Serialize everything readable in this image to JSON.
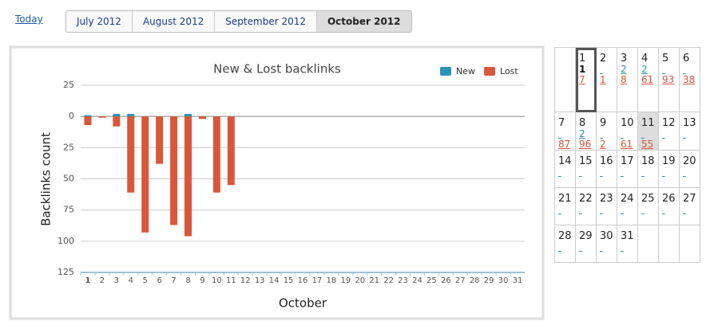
{
  "nav": {
    "today": "Today",
    "tabs": [
      "July 2012",
      "August 2012",
      "September 2012",
      "October 2012"
    ],
    "active_tab": 3
  },
  "chart_data": {
    "type": "bar",
    "title": "New & Lost backlinks",
    "x_label": "October",
    "y_label": "Backlinks count",
    "categories": [
      "1",
      "2",
      "3",
      "4",
      "5",
      "6",
      "7",
      "8",
      "9",
      "10",
      "11",
      "12",
      "13",
      "14",
      "15",
      "16",
      "17",
      "18",
      "19",
      "20",
      "21",
      "22",
      "23",
      "24",
      "25",
      "26",
      "27",
      "28",
      "29",
      "30",
      "31"
    ],
    "series": [
      {
        "name": "New",
        "color": "#2e93b5",
        "values": [
          1,
          null,
          2,
          2,
          null,
          null,
          null,
          2,
          null,
          null,
          null,
          null,
          null,
          null,
          null,
          null,
          null,
          null,
          null,
          null,
          null,
          null,
          null,
          null,
          null,
          null,
          null,
          null,
          null,
          null,
          null
        ]
      },
      {
        "name": "Lost",
        "color": "#d9573a",
        "values": [
          -7,
          -1,
          -8,
          -61,
          -93,
          -38,
          -87,
          -96,
          -2,
          -61,
          -55,
          null,
          null,
          null,
          null,
          null,
          null,
          null,
          null,
          null,
          null,
          null,
          null,
          null,
          null,
          null,
          null,
          null,
          null,
          null,
          null
        ]
      }
    ],
    "ylim": [
      -125,
      25
    ],
    "yticks": [
      25,
      0,
      {
        "value": -25,
        "label": "25"
      },
      {
        "value": -50,
        "label": "50"
      },
      {
        "value": -75,
        "label": "75"
      },
      {
        "value": -100,
        "label": "100"
      },
      {
        "value": -125,
        "label": "125"
      }
    ],
    "grid": true,
    "legend": "top-right"
  },
  "calendar": {
    "weeks": [
      [
        null,
        {
          "day": "1",
          "new": "1",
          "lost": "7",
          "today": true
        },
        {
          "day": "2",
          "lost": "1"
        },
        {
          "day": "3",
          "new": "2",
          "lost": "8"
        },
        {
          "day": "4",
          "new": "2",
          "lost": "61"
        },
        {
          "day": "5",
          "lost": "93"
        },
        {
          "day": "6",
          "lost": "38"
        }
      ],
      [
        {
          "day": "7",
          "lost": "87"
        },
        {
          "day": "8",
          "new": "2",
          "lost": "96"
        },
        {
          "day": "9",
          "lost": "2"
        },
        {
          "day": "10",
          "lost": "61"
        },
        {
          "day": "11",
          "lost": "55",
          "selected": true
        },
        {
          "day": "12"
        },
        {
          "day": "13"
        }
      ],
      [
        {
          "day": "14"
        },
        {
          "day": "15"
        },
        {
          "day": "16"
        },
        {
          "day": "17"
        },
        {
          "day": "18"
        },
        {
          "day": "19"
        },
        {
          "day": "20"
        }
      ],
      [
        {
          "day": "21"
        },
        {
          "day": "22"
        },
        {
          "day": "23"
        },
        {
          "day": "24"
        },
        {
          "day": "25"
        },
        {
          "day": "26"
        },
        {
          "day": "27"
        }
      ],
      [
        {
          "day": "28"
        },
        {
          "day": "29"
        },
        {
          "day": "30"
        },
        {
          "day": "31"
        },
        null,
        null,
        null
      ]
    ]
  }
}
